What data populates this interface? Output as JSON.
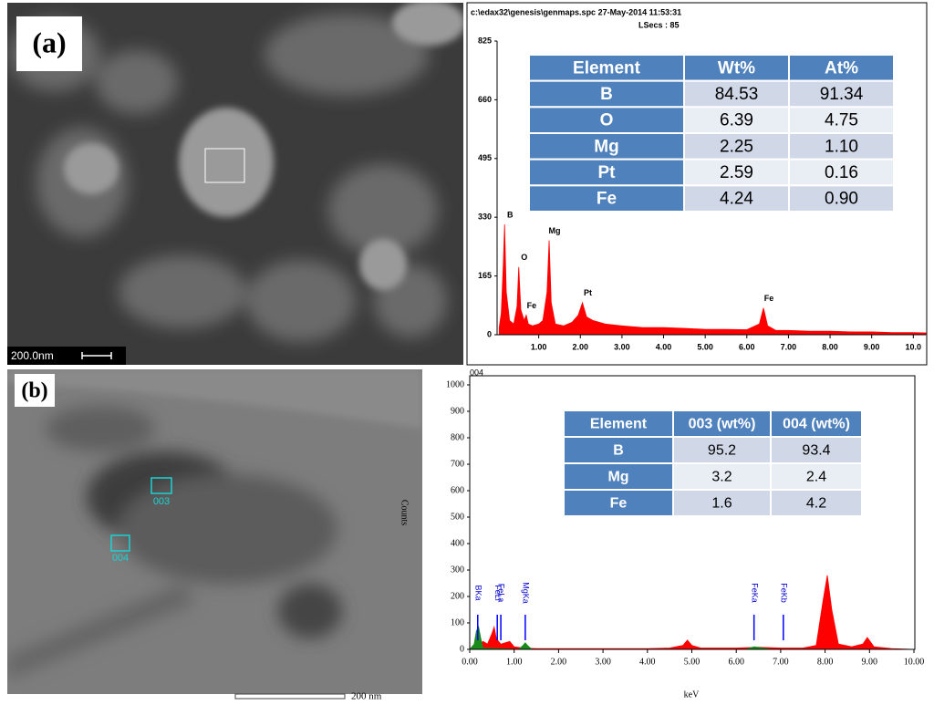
{
  "panel_a": {
    "label": "(a)",
    "scale_bar": "200.0nm",
    "spectrum": {
      "type": "line",
      "header": "c:\\edax32\\genesis\\genmaps.spc  27-May-2014 11:53:31",
      "subheader": "LSecs : 85",
      "xlim": [
        0,
        10.3
      ],
      "xticks": [
        {
          "value": 1,
          "label": "1.00"
        },
        {
          "value": 2,
          "label": "2.00"
        },
        {
          "value": 3,
          "label": "3.00"
        },
        {
          "value": 4,
          "label": "4.00"
        },
        {
          "value": 5,
          "label": "5.00"
        },
        {
          "value": 6,
          "label": "6.00"
        },
        {
          "value": 7,
          "label": "7.00"
        },
        {
          "value": 8,
          "label": "8.00"
        },
        {
          "value": 9,
          "label": "9.00"
        },
        {
          "value": 10,
          "label": "10.0"
        }
      ],
      "ylim": [
        0,
        825
      ],
      "yticks": [
        0,
        165,
        330,
        495,
        660,
        825
      ],
      "series": [
        {
          "color": "#ff0000",
          "x": [
            0.05,
            0.1,
            0.15,
            0.18,
            0.22,
            0.3,
            0.4,
            0.48,
            0.52,
            0.57,
            0.65,
            0.7,
            0.75,
            0.85,
            1.0,
            1.1,
            1.2,
            1.25,
            1.3,
            1.4,
            1.6,
            1.8,
            1.95,
            2.05,
            2.15,
            2.3,
            2.6,
            3.0,
            3.5,
            4.0,
            4.5,
            5.0,
            5.5,
            6.0,
            6.3,
            6.4,
            6.5,
            6.7,
            7.0,
            7.5,
            8.0,
            8.5,
            9.0,
            9.5,
            10.0,
            10.3
          ],
          "values": [
            20,
            60,
            200,
            310,
            120,
            40,
            30,
            80,
            190,
            70,
            40,
            55,
            30,
            25,
            30,
            40,
            120,
            265,
            90,
            30,
            25,
            35,
            55,
            90,
            50,
            40,
            30,
            25,
            20,
            20,
            18,
            15,
            15,
            14,
            30,
            75,
            25,
            12,
            12,
            10,
            10,
            8,
            8,
            6,
            6,
            5
          ]
        }
      ],
      "peak_labels": [
        {
          "text": "B",
          "x": 0.18
        },
        {
          "text": "O",
          "x": 0.52
        },
        {
          "text": "Fe",
          "x": 0.7
        },
        {
          "text": "Mg",
          "x": 1.25
        },
        {
          "text": "Pt",
          "x": 2.05
        },
        {
          "text": "Fe",
          "x": 6.4
        }
      ]
    },
    "table": {
      "header": [
        "Element",
        "Wt%",
        "At%"
      ],
      "rows": [
        [
          "B",
          "84.53",
          "91.34"
        ],
        [
          "O",
          "6.39",
          "4.75"
        ],
        [
          "Mg",
          "2.25",
          "1.10"
        ],
        [
          "Pt",
          "2.59",
          "0.16"
        ],
        [
          "Fe",
          "4.24",
          "0.90"
        ]
      ]
    }
  },
  "panel_b": {
    "label": "(b)",
    "scale_bar": "200 nm",
    "regions": [
      "003",
      "004"
    ],
    "spectrum": {
      "type": "line",
      "header": "004",
      "x_label": "keV",
      "y_label": "Counts",
      "xlim": [
        0,
        10
      ],
      "xticks": [
        {
          "value": 0,
          "label": "0.00"
        },
        {
          "value": 1,
          "label": "1.00"
        },
        {
          "value": 2,
          "label": "2.00"
        },
        {
          "value": 3,
          "label": "3.00"
        },
        {
          "value": 4,
          "label": "4.00"
        },
        {
          "value": 5,
          "label": "5.00"
        },
        {
          "value": 6,
          "label": "6.00"
        },
        {
          "value": 7,
          "label": "7.00"
        },
        {
          "value": 8,
          "label": "8.00"
        },
        {
          "value": 9,
          "label": "9.00"
        },
        {
          "value": 10,
          "label": "10.00"
        }
      ],
      "ylim": [
        0,
        1000
      ],
      "yticks": [
        0,
        100,
        200,
        300,
        400,
        500,
        600,
        700,
        800,
        900,
        1000
      ],
      "series": [
        {
          "color": "#ff0000",
          "x": [
            0,
            0.1,
            0.2,
            0.3,
            0.4,
            0.5,
            0.55,
            0.6,
            0.7,
            0.8,
            0.9,
            1.0,
            1.2,
            1.5,
            2,
            3,
            4,
            4.5,
            4.8,
            4.9,
            5.0,
            5.2,
            5.5,
            6,
            6.5,
            7,
            7.5,
            7.8,
            7.95,
            8.05,
            8.15,
            8.3,
            8.6,
            8.85,
            8.95,
            9.1,
            9.5,
            10
          ],
          "values": [
            0,
            5,
            15,
            30,
            20,
            60,
            85,
            40,
            20,
            25,
            30,
            10,
            5,
            3,
            3,
            3,
            3,
            5,
            15,
            35,
            15,
            5,
            5,
            5,
            8,
            5,
            5,
            15,
            180,
            280,
            150,
            20,
            10,
            20,
            45,
            10,
            3,
            0
          ]
        },
        {
          "color": "#1a8a1a",
          "x": [
            0,
            0.1,
            0.15,
            0.2,
            0.25,
            0.3,
            1.1,
            1.2,
            1.25,
            1.3,
            1.4,
            6.2,
            6.4,
            6.6,
            6.8
          ],
          "values": [
            0,
            20,
            70,
            85,
            40,
            5,
            0,
            15,
            25,
            15,
            0,
            0,
            10,
            5,
            0
          ]
        }
      ],
      "element_lines": [
        {
          "label": "BKa",
          "x": 0.18
        },
        {
          "label": "FeLl",
          "x": 0.62
        },
        {
          "label": "FeLa",
          "x": 0.7
        },
        {
          "label": "MgKa",
          "x": 1.25
        },
        {
          "label": "FeKa",
          "x": 6.4
        },
        {
          "label": "FeKb",
          "x": 7.06
        }
      ]
    },
    "table": {
      "header": [
        "Element",
        "003 (wt%)",
        "004 (wt%)"
      ],
      "rows": [
        [
          "B",
          "95.2",
          "93.4"
        ],
        [
          "Mg",
          "3.2",
          "2.4"
        ],
        [
          "Fe",
          "1.6",
          "4.2"
        ]
      ]
    }
  }
}
